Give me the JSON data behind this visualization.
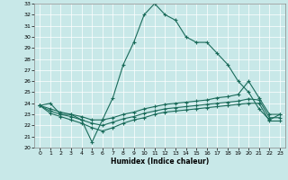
{
  "xlabel": "Humidex (Indice chaleur)",
  "background_color": "#c8e8e8",
  "grid_color": "#b0d0d0",
  "line_color": "#1a6b5a",
  "xlim": [
    -0.5,
    23.5
  ],
  "ylim": [
    20,
    33
  ],
  "xticks": [
    0,
    1,
    2,
    3,
    4,
    5,
    6,
    7,
    8,
    9,
    10,
    11,
    12,
    13,
    14,
    15,
    16,
    17,
    18,
    19,
    20,
    21,
    22,
    23
  ],
  "yticks": [
    20,
    21,
    22,
    23,
    24,
    25,
    26,
    27,
    28,
    29,
    30,
    31,
    32,
    33
  ],
  "series": [
    {
      "x": [
        0,
        1,
        2,
        3,
        4,
        5,
        6,
        7,
        8,
        9,
        10,
        11,
        12,
        13,
        14,
        15,
        16,
        17,
        18,
        19,
        20,
        21,
        22,
        23
      ],
      "y": [
        23.8,
        24.0,
        23.0,
        23.0,
        22.5,
        20.5,
        22.5,
        24.5,
        27.5,
        29.5,
        32.0,
        33.0,
        32.0,
        31.5,
        30.0,
        29.5,
        29.5,
        28.5,
        27.5,
        26.0,
        25.0,
        23.5,
        22.5,
        23.0
      ],
      "marker": "+"
    },
    {
      "x": [
        0,
        1,
        2,
        3,
        4,
        5,
        6,
        7,
        8,
        9,
        10,
        11,
        12,
        13,
        14,
        15,
        16,
        17,
        18,
        19,
        20,
        21,
        22,
        23
      ],
      "y": [
        23.8,
        23.5,
        23.2,
        23.0,
        22.8,
        22.5,
        22.5,
        22.7,
        23.0,
        23.2,
        23.5,
        23.7,
        23.9,
        24.0,
        24.1,
        24.2,
        24.3,
        24.5,
        24.6,
        24.8,
        26.0,
        24.5,
        23.0,
        23.0
      ],
      "marker": "+"
    },
    {
      "x": [
        0,
        1,
        2,
        3,
        4,
        5,
        6,
        7,
        8,
        9,
        10,
        11,
        12,
        13,
        14,
        15,
        16,
        17,
        18,
        19,
        20,
        21,
        22,
        23
      ],
      "y": [
        23.8,
        23.3,
        23.0,
        22.8,
        22.5,
        22.2,
        22.0,
        22.3,
        22.6,
        22.8,
        23.1,
        23.3,
        23.5,
        23.6,
        23.7,
        23.8,
        23.9,
        24.0,
        24.1,
        24.2,
        24.4,
        24.3,
        22.7,
        22.7
      ],
      "marker": "+"
    },
    {
      "x": [
        0,
        1,
        2,
        3,
        4,
        5,
        6,
        7,
        8,
        9,
        10,
        11,
        12,
        13,
        14,
        15,
        16,
        17,
        18,
        19,
        20,
        21,
        22,
        23
      ],
      "y": [
        23.8,
        23.1,
        22.8,
        22.5,
        22.2,
        21.8,
        21.5,
        21.8,
        22.2,
        22.5,
        22.7,
        23.0,
        23.2,
        23.3,
        23.4,
        23.5,
        23.6,
        23.7,
        23.8,
        23.9,
        24.0,
        24.0,
        22.4,
        22.4
      ],
      "marker": "+"
    }
  ]
}
